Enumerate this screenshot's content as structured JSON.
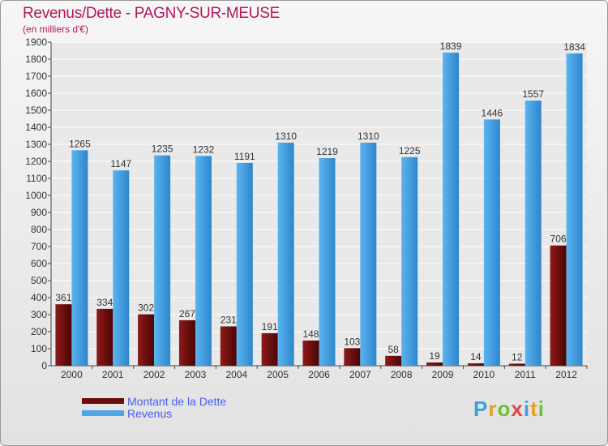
{
  "header": {
    "title": "Revenus/Dette - PAGNY-SUR-MEUSE",
    "subtitle": "(en milliers d'€)"
  },
  "colors": {
    "title": "#b5155a",
    "dette": "#7a1212",
    "revenus": "#4ea6e6",
    "legend_text": "#4a5cf0"
  },
  "legend": {
    "items": [
      {
        "label": "Montant de la Dette",
        "color": "#6b0d0d"
      },
      {
        "label": "Revenus",
        "color": "#4ea6e6"
      }
    ]
  },
  "logo": {
    "text": "Proxiti",
    "letter_colors": [
      "#3aa0e0",
      "#e8a020",
      "#6cc040",
      "#e04848",
      "#3aa0e0",
      "#e8a020",
      "#6cc040"
    ]
  },
  "chart_data": {
    "type": "bar",
    "categories": [
      "2000",
      "2001",
      "2002",
      "2003",
      "2004",
      "2005",
      "2006",
      "2007",
      "2008",
      "2009",
      "2010",
      "2011",
      "2012"
    ],
    "series": [
      {
        "name": "Montant de la Dette",
        "values": [
          361,
          334,
          302,
          267,
          231,
          191,
          148,
          103,
          58,
          19,
          14,
          12,
          706
        ]
      },
      {
        "name": "Revenus",
        "values": [
          1265,
          1147,
          1235,
          1232,
          1191,
          1310,
          1219,
          1310,
          1225,
          1839,
          1446,
          1557,
          1834
        ]
      }
    ],
    "ylim": [
      0,
      1900
    ],
    "yticks": [
      0,
      100,
      200,
      300,
      400,
      500,
      600,
      700,
      800,
      900,
      1000,
      1100,
      1200,
      1300,
      1400,
      1500,
      1600,
      1700,
      1800,
      1900
    ],
    "grid": true,
    "legend_position": "bottom-left"
  }
}
